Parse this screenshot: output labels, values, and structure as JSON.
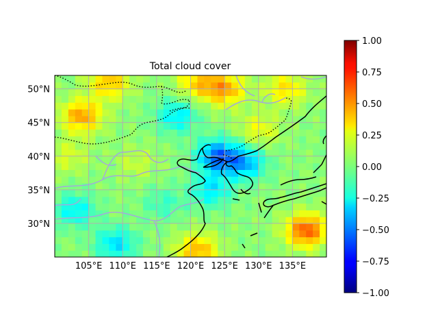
{
  "figure": {
    "title": "Total cloud cover"
  },
  "map": {
    "lon_range": [
      100,
      140
    ],
    "lat_range": [
      25,
      52
    ],
    "lon_ticks": [
      105,
      110,
      115,
      120,
      125,
      130,
      135
    ],
    "lat_ticks": [
      30,
      35,
      40,
      45,
      50
    ],
    "lon_tick_labels": [
      "105°E",
      "110°E",
      "115°E",
      "120°E",
      "125°E",
      "130°E",
      "135°E"
    ],
    "lat_tick_labels": [
      "30°N",
      "35°N",
      "40°N",
      "45°N",
      "50°N"
    ],
    "grid": true,
    "colormap": "jet",
    "features": [
      "coastlines",
      "country-borders",
      "rivers"
    ]
  },
  "colorbar": {
    "range": [
      -1.0,
      1.0
    ],
    "tick_values": [
      1.0,
      0.75,
      0.5,
      0.25,
      0.0,
      -0.25,
      -0.5,
      -0.75,
      -1.0
    ],
    "tick_labels": [
      "1.00",
      "0.75",
      "0.50",
      "0.25",
      "0.00",
      "−0.25",
      "−0.50",
      "−0.75",
      "−1.00"
    ]
  },
  "anomaly_field": {
    "background": 0.02,
    "features": [
      {
        "lon": 104,
        "lat": 46,
        "amp": 0.42
      },
      {
        "lon": 108,
        "lat": 51,
        "amp": 0.35
      },
      {
        "lon": 125,
        "lat": 50,
        "amp": 0.4
      },
      {
        "lon": 121,
        "lat": 51,
        "amp": 0.3
      },
      {
        "lon": 134,
        "lat": 50,
        "amp": 0.28
      },
      {
        "lon": 124,
        "lat": 40,
        "amp": -0.55
      },
      {
        "lon": 128,
        "lat": 39,
        "amp": -0.4
      },
      {
        "lon": 123,
        "lat": 35,
        "amp": -0.3
      },
      {
        "lon": 118,
        "lat": 46,
        "amp": -0.3
      },
      {
        "lon": 103,
        "lat": 32,
        "amp": -0.28
      },
      {
        "lon": 109,
        "lat": 27,
        "amp": -0.32
      },
      {
        "lon": 137,
        "lat": 29,
        "amp": 0.55
      },
      {
        "lon": 121,
        "lat": 26,
        "amp": 0.38
      },
      {
        "lon": 116,
        "lat": 33,
        "amp": -0.15
      },
      {
        "lon": 130,
        "lat": 44,
        "amp": 0.2
      },
      {
        "lon": 102,
        "lat": 40,
        "amp": 0.15
      },
      {
        "lon": 112,
        "lat": 39,
        "amp": 0.12
      }
    ]
  }
}
